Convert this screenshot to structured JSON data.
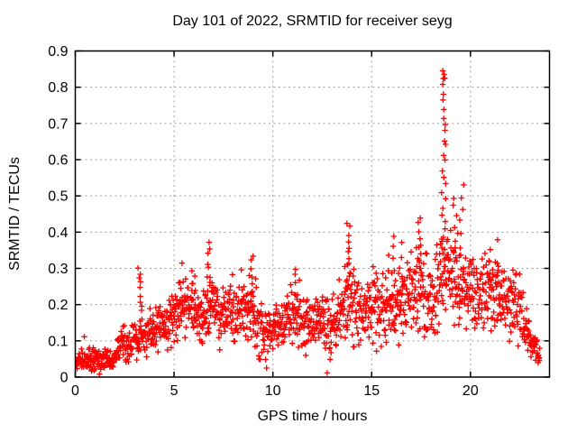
{
  "chart_data": {
    "type": "scatter",
    "title": "Day 101 of 2022, SRMTID for receiver seyg",
    "xlabel": "GPS time / hours",
    "ylabel": "SRMTID / TECUs",
    "xlim": [
      0,
      24
    ],
    "ylim": [
      0,
      0.9
    ],
    "xticks": [
      0,
      5,
      10,
      15,
      20
    ],
    "yticks": [
      0,
      0.1,
      0.2,
      0.3,
      0.4,
      0.5,
      0.6,
      0.7,
      0.8,
      0.9
    ],
    "grid": true,
    "legend": "none",
    "marker": "plus",
    "marker_size": 7,
    "colors": {
      "points": "#ff0000",
      "grid": "#9e9e9e",
      "axis": "#000000",
      "background": "#ffffff"
    },
    "x_data_range": [
      0,
      23.5
    ],
    "peak": {
      "x": 18.65,
      "y": 0.845
    },
    "data_generation": {
      "seed": 101,
      "n_points": 1550,
      "x_end": 23.5,
      "envelope_format": [
        "hour",
        "mean_TECUs",
        "half_spread_TECUs"
      ],
      "envelope": [
        [
          0.0,
          0.042,
          0.022
        ],
        [
          0.5,
          0.048,
          0.025
        ],
        [
          1.0,
          0.052,
          0.028
        ],
        [
          1.5,
          0.048,
          0.026
        ],
        [
          1.9,
          0.042,
          0.025
        ],
        [
          2.3,
          0.095,
          0.038
        ],
        [
          2.7,
          0.082,
          0.04
        ],
        [
          3.1,
          0.1,
          0.045
        ],
        [
          3.4,
          0.12,
          0.05
        ],
        [
          3.8,
          0.125,
          0.05
        ],
        [
          4.2,
          0.14,
          0.055
        ],
        [
          4.7,
          0.155,
          0.06
        ],
        [
          5.2,
          0.185,
          0.06
        ],
        [
          5.8,
          0.195,
          0.065
        ],
        [
          6.3,
          0.175,
          0.065
        ],
        [
          6.8,
          0.19,
          0.07
        ],
        [
          7.3,
          0.165,
          0.06
        ],
        [
          7.8,
          0.17,
          0.06
        ],
        [
          8.3,
          0.19,
          0.065
        ],
        [
          8.8,
          0.2,
          0.075
        ],
        [
          9.3,
          0.15,
          0.08
        ],
        [
          9.6,
          0.11,
          0.06
        ],
        [
          10.0,
          0.145,
          0.055
        ],
        [
          10.5,
          0.16,
          0.055
        ],
        [
          11.0,
          0.17,
          0.065
        ],
        [
          11.5,
          0.15,
          0.06
        ],
        [
          12.0,
          0.14,
          0.055
        ],
        [
          12.5,
          0.15,
          0.065
        ],
        [
          12.9,
          0.13,
          0.065
        ],
        [
          13.4,
          0.18,
          0.07
        ],
        [
          13.9,
          0.21,
          0.085
        ],
        [
          14.4,
          0.165,
          0.075
        ],
        [
          15.0,
          0.19,
          0.08
        ],
        [
          15.6,
          0.2,
          0.085
        ],
        [
          16.2,
          0.195,
          0.085
        ],
        [
          16.8,
          0.21,
          0.085
        ],
        [
          17.4,
          0.235,
          0.09
        ],
        [
          18.0,
          0.22,
          0.085
        ],
        [
          18.4,
          0.26,
          0.09
        ],
        [
          18.8,
          0.295,
          0.105
        ],
        [
          19.3,
          0.27,
          0.1
        ],
        [
          19.8,
          0.245,
          0.085
        ],
        [
          20.3,
          0.22,
          0.08
        ],
        [
          20.8,
          0.235,
          0.075
        ],
        [
          21.3,
          0.235,
          0.07
        ],
        [
          21.8,
          0.21,
          0.07
        ],
        [
          22.3,
          0.195,
          0.07
        ],
        [
          22.7,
          0.16,
          0.065
        ],
        [
          23.0,
          0.105,
          0.05
        ],
        [
          23.25,
          0.07,
          0.035
        ],
        [
          23.5,
          0.055,
          0.028
        ]
      ],
      "spikes_format": [
        "hour",
        "top_TECUs",
        "n_points"
      ],
      "spikes": [
        [
          3.28,
          0.305,
          12
        ],
        [
          5.95,
          0.3,
          5
        ],
        [
          6.8,
          0.375,
          9
        ],
        [
          8.9,
          0.335,
          7
        ],
        [
          11.15,
          0.3,
          6
        ],
        [
          13.85,
          0.43,
          12
        ],
        [
          16.15,
          0.39,
          6
        ],
        [
          16.45,
          0.37,
          5
        ],
        [
          17.4,
          0.445,
          9
        ],
        [
          18.65,
          0.845,
          26
        ],
        [
          19.2,
          0.5,
          7
        ],
        [
          19.55,
          0.53,
          8
        ],
        [
          20.95,
          0.345,
          4
        ],
        [
          21.35,
          0.31,
          4
        ]
      ]
    }
  }
}
